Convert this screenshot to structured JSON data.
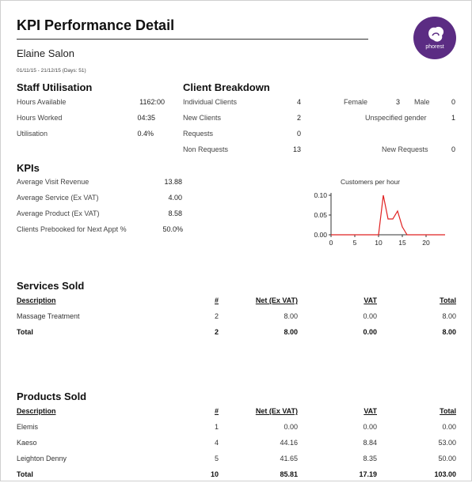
{
  "header": {
    "title": "KPI Performance Detail",
    "salon": "Elaine Salon",
    "dates": "01/11/15 - 21/12/15 (Days: 51)",
    "logo_text": "phorest"
  },
  "staff_utilisation": {
    "heading": "Staff Utilisation",
    "rows": [
      {
        "label": "Hours Available",
        "value": "1162:00"
      },
      {
        "label": "Hours Worked",
        "value": "04:35"
      },
      {
        "label": "Utilisation",
        "value": "0.4%"
      }
    ]
  },
  "client_breakdown": {
    "heading": "Client Breakdown",
    "rows": [
      {
        "label": "Individual Clients",
        "value": "4"
      },
      {
        "label": "New Clients",
        "value": "2"
      },
      {
        "label": "Requests",
        "value": "0"
      },
      {
        "label": "Non Requests",
        "value": "13"
      }
    ],
    "female_label": "Female",
    "female_value": "3",
    "male_label": "Male",
    "male_value": "0",
    "unspecified_label": "Unspecified gender",
    "unspecified_value": "1",
    "new_requests_label": "New Requests",
    "new_requests_value": "0"
  },
  "kpis": {
    "heading": "KPIs",
    "rows": [
      {
        "label": "Average Visit Revenue",
        "value": "13.88"
      },
      {
        "label": "Average Service (Ex VAT)",
        "value": "4.00"
      },
      {
        "label": "Average Product (Ex VAT)",
        "value": "8.58"
      },
      {
        "label": "Clients Prebooked for Next Appt %",
        "value": "50.0%"
      }
    ]
  },
  "chart_data": {
    "type": "line",
    "title": "Customers per hour",
    "xlabel": "",
    "ylabel": "",
    "xlim": [
      0,
      24
    ],
    "ylim": [
      0,
      0.1
    ],
    "xticks": [
      "0",
      "5",
      "10",
      "15",
      "20"
    ],
    "yticks": [
      "0.00",
      "0.05",
      "0.10"
    ],
    "grid": false,
    "series": [
      {
        "color": "#e02020",
        "x": [
          0,
          1,
          2,
          3,
          4,
          5,
          6,
          7,
          8,
          9,
          10,
          11,
          12,
          13,
          14,
          15,
          16,
          17,
          18,
          19,
          20,
          21,
          22,
          23,
          24
        ],
        "y": [
          0,
          0,
          0,
          0,
          0,
          0,
          0,
          0,
          0,
          0,
          0,
          0.1,
          0.04,
          0.04,
          0.06,
          0.02,
          0,
          0,
          0,
          0,
          0,
          0,
          0,
          0,
          0
        ]
      }
    ]
  },
  "services_sold": {
    "heading": "Services Sold",
    "columns": [
      "Description",
      "#",
      "Net (Ex VAT)",
      "VAT",
      "Total"
    ],
    "rows": [
      [
        "Massage Treatment",
        "2",
        "8.00",
        "0.00",
        "8.00"
      ]
    ],
    "total": [
      "Total",
      "2",
      "8.00",
      "0.00",
      "8.00"
    ]
  },
  "products_sold": {
    "heading": "Products Sold",
    "columns": [
      "Description",
      "#",
      "Net (Ex VAT)",
      "VAT",
      "Total"
    ],
    "rows": [
      [
        "Elemis",
        "1",
        "0.00",
        "0.00",
        "0.00"
      ],
      [
        "Kaeso",
        "4",
        "44.16",
        "8.84",
        "53.00"
      ],
      [
        "Leighton Denny",
        "5",
        "41.65",
        "8.35",
        "50.00"
      ]
    ],
    "total": [
      "Total",
      "10",
      "85.81",
      "17.19",
      "103.00"
    ]
  },
  "colors": {
    "logo_bg": "#5b2c83",
    "chart_line": "#e02020"
  }
}
